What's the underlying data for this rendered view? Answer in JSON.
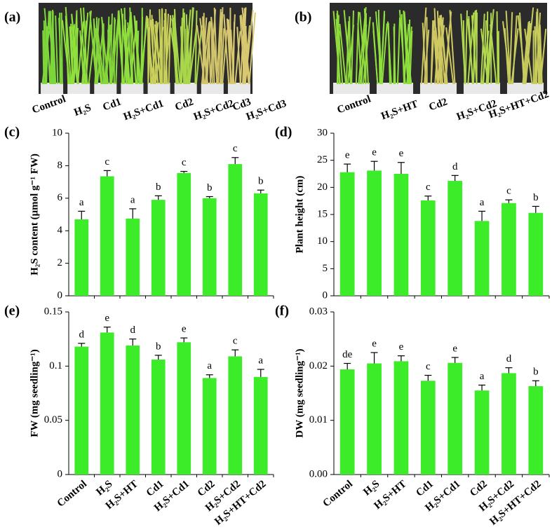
{
  "photos": [
    {
      "panel_label": "(a)",
      "treatments": [
        "Control",
        "H₂S",
        "Cd1",
        "H₂S+Cd1",
        "Cd2",
        "H₂S+Cd2",
        "Cd3",
        "H₂S+Cd3"
      ]
    },
    {
      "panel_label": "(b)",
      "treatments": [
        "Control",
        "H₂S+HT",
        "Cd2",
        "H₂S+Cd2",
        "H₂S+HT+Cd2"
      ]
    }
  ],
  "chart_data": [
    {
      "type": "bar",
      "panel_label": "(c)",
      "y_label": "H₂S content (μmol g⁻¹ FW)",
      "categories": [
        null,
        null,
        null,
        null,
        null,
        null,
        null,
        null
      ],
      "values": [
        4.7,
        7.35,
        4.75,
        5.9,
        7.55,
        6.0,
        8.1,
        6.3
      ],
      "errors": [
        0.5,
        0.35,
        0.6,
        0.25,
        0.1,
        0.1,
        0.4,
        0.2
      ],
      "letters": [
        "a",
        "c",
        "a",
        "b",
        "c",
        "b",
        "c",
        "b"
      ],
      "color": "#3dec28",
      "ylim": [
        0,
        10
      ],
      "yticks": [
        0,
        2,
        4,
        6,
        8,
        10
      ]
    },
    {
      "type": "bar",
      "panel_label": "(d)",
      "y_label": "Plant height (cm)",
      "categories": [
        null,
        null,
        null,
        null,
        null,
        null,
        null,
        null
      ],
      "values": [
        22.8,
        23.1,
        22.5,
        17.6,
        21.2,
        13.8,
        17.1,
        15.3
      ],
      "errors": [
        1.5,
        1.7,
        2.1,
        0.8,
        1.0,
        1.8,
        0.6,
        1.2
      ],
      "letters": [
        "e",
        "e",
        "e",
        "c",
        "d",
        "a",
        "c",
        "b"
      ],
      "color": "#3dec28",
      "ylim": [
        0,
        30
      ],
      "yticks": [
        0,
        5,
        10,
        15,
        20,
        25,
        30
      ]
    },
    {
      "type": "bar",
      "panel_label": "(e)",
      "y_label": "FW (mg seedling⁻¹)",
      "categories": [
        "Control",
        "H₂S",
        "H₂S+HT",
        "Cd1",
        "H₂S+Cd1",
        "Cd2",
        "H₂S+Cd2",
        "H₂S+HT+Cd2"
      ],
      "values": [
        0.118,
        0.131,
        0.119,
        0.106,
        0.122,
        0.089,
        0.109,
        0.09
      ],
      "errors": [
        0.003,
        0.005,
        0.006,
        0.004,
        0.004,
        0.003,
        0.006,
        0.007
      ],
      "letters": [
        "d",
        "e",
        "d",
        "b",
        "e",
        "a",
        "c",
        "a"
      ],
      "color": "#3dec28",
      "ylim": [
        0,
        0.15
      ],
      "yticks": [
        0,
        0.05,
        0.1,
        0.15
      ]
    },
    {
      "type": "bar",
      "panel_label": "(f)",
      "y_label": "DW (mg seedling⁻¹)",
      "categories": [
        "Control",
        "H₂S",
        "H₂S+HT",
        "Cd1",
        "H₂S+Cd1",
        "Cd2",
        "H₂S+Cd2",
        "H₂S+HT+Cd2"
      ],
      "values": [
        0.0194,
        0.0205,
        0.0209,
        0.0173,
        0.0206,
        0.0155,
        0.0187,
        0.0163
      ],
      "errors": [
        0.0011,
        0.002,
        0.001,
        0.001,
        0.001,
        0.001,
        0.001,
        0.001
      ],
      "letters": [
        "de",
        "e",
        "e",
        "c",
        "e",
        "a",
        "d",
        "b"
      ],
      "color": "#3dec28",
      "ylim": [
        0,
        0.03
      ],
      "yticks": [
        {
          "value": 0,
          "label": "0.00"
        },
        {
          "value": 0.01,
          "label": "0.01"
        },
        {
          "value": 0.02,
          "label": "0.02"
        },
        {
          "value": 0.03,
          "label": "0.03"
        }
      ]
    }
  ]
}
